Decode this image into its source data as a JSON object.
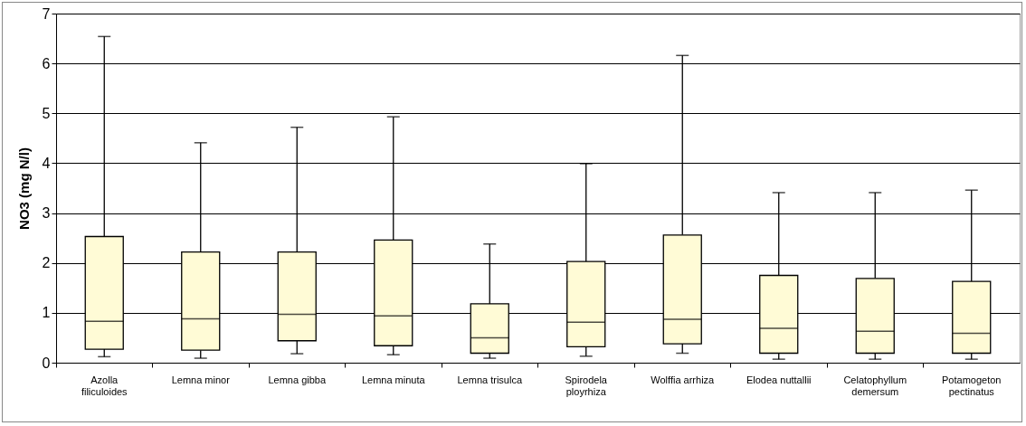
{
  "chart_data": {
    "type": "box",
    "ylabel": "NO3 (mg N/l)",
    "categories": [
      "Azolla filiculoides",
      "Lemna minor",
      "Lemna gibba",
      "Lemna minuta",
      "Lemna trisulca",
      "Spirodela ployrhiza",
      "Wolffia arrhiza",
      "Elodea nuttallii",
      "Celatophyllum demersum",
      "Potamogeton pectinatus"
    ],
    "boxes": [
      {
        "low": 0.12,
        "q1": 0.27,
        "median": 0.83,
        "q3": 2.53,
        "high": 6.54
      },
      {
        "low": 0.09,
        "q1": 0.25,
        "median": 0.88,
        "q3": 2.22,
        "high": 4.41
      },
      {
        "low": 0.18,
        "q1": 0.44,
        "median": 0.97,
        "q3": 2.22,
        "high": 4.72
      },
      {
        "low": 0.16,
        "q1": 0.34,
        "median": 0.94,
        "q3": 2.46,
        "high": 4.93
      },
      {
        "low": 0.09,
        "q1": 0.19,
        "median": 0.5,
        "q3": 1.18,
        "high": 2.38
      },
      {
        "low": 0.13,
        "q1": 0.32,
        "median": 0.81,
        "q3": 2.03,
        "high": 3.99
      },
      {
        "low": 0.19,
        "q1": 0.38,
        "median": 0.87,
        "q3": 2.56,
        "high": 6.16
      },
      {
        "low": 0.07,
        "q1": 0.19,
        "median": 0.69,
        "q3": 1.75,
        "high": 3.41
      },
      {
        "low": 0.07,
        "q1": 0.19,
        "median": 0.63,
        "q3": 1.69,
        "high": 3.41
      },
      {
        "low": 0.07,
        "q1": 0.19,
        "median": 0.59,
        "q3": 1.63,
        "high": 3.46
      }
    ],
    "color": "#fffbd6",
    "ylim": [
      0,
      7
    ],
    "yticks": [
      0,
      1,
      2,
      3,
      4,
      5,
      6,
      7
    ],
    "grid": "y"
  }
}
